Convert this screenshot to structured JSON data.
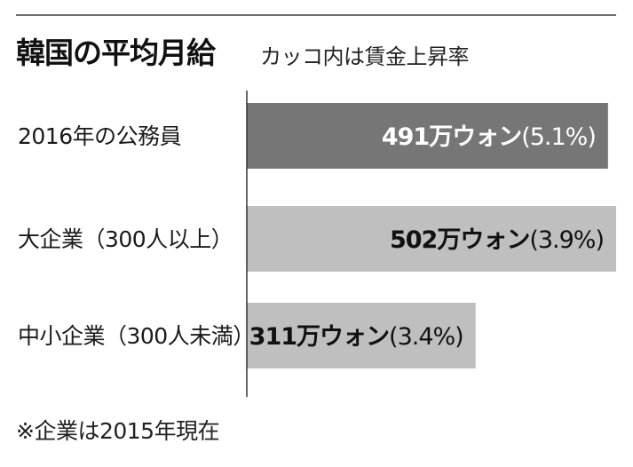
{
  "header": {
    "title": "韓国の平均月給",
    "subtitle": "カッコ内は賃金上昇率"
  },
  "footnote": "※企業は2015年現在",
  "colors": {
    "highlight_bar": "#767676",
    "normal_bar": "#bfbfbf",
    "highlight_text": "#ffffff",
    "normal_text": "#111111",
    "axis": "#333333"
  },
  "chart_data": {
    "type": "bar",
    "orientation": "horizontal",
    "title": "韓国の平均月給",
    "subtitle": "カッコ内は賃金上昇率",
    "xlim": [
      0,
      502
    ],
    "grid": false,
    "categories": [
      "2016年の公務員",
      "大企業（300人以上）",
      "中小企業（300人未満）"
    ],
    "values": [
      491,
      502,
      311
    ],
    "unit": "万ウォン",
    "growth_rates": [
      5.1,
      3.9,
      3.4
    ],
    "highlight": [
      true,
      false,
      false
    ],
    "data_labels": [
      {
        "value": "491万ウォン",
        "rate": "(5.1%)"
      },
      {
        "value": "502万ウォン",
        "rate": "(3.9%)"
      },
      {
        "value": "311万ウォン",
        "rate": "(3.4%)"
      }
    ],
    "footnote": "※企業は2015年現在"
  }
}
